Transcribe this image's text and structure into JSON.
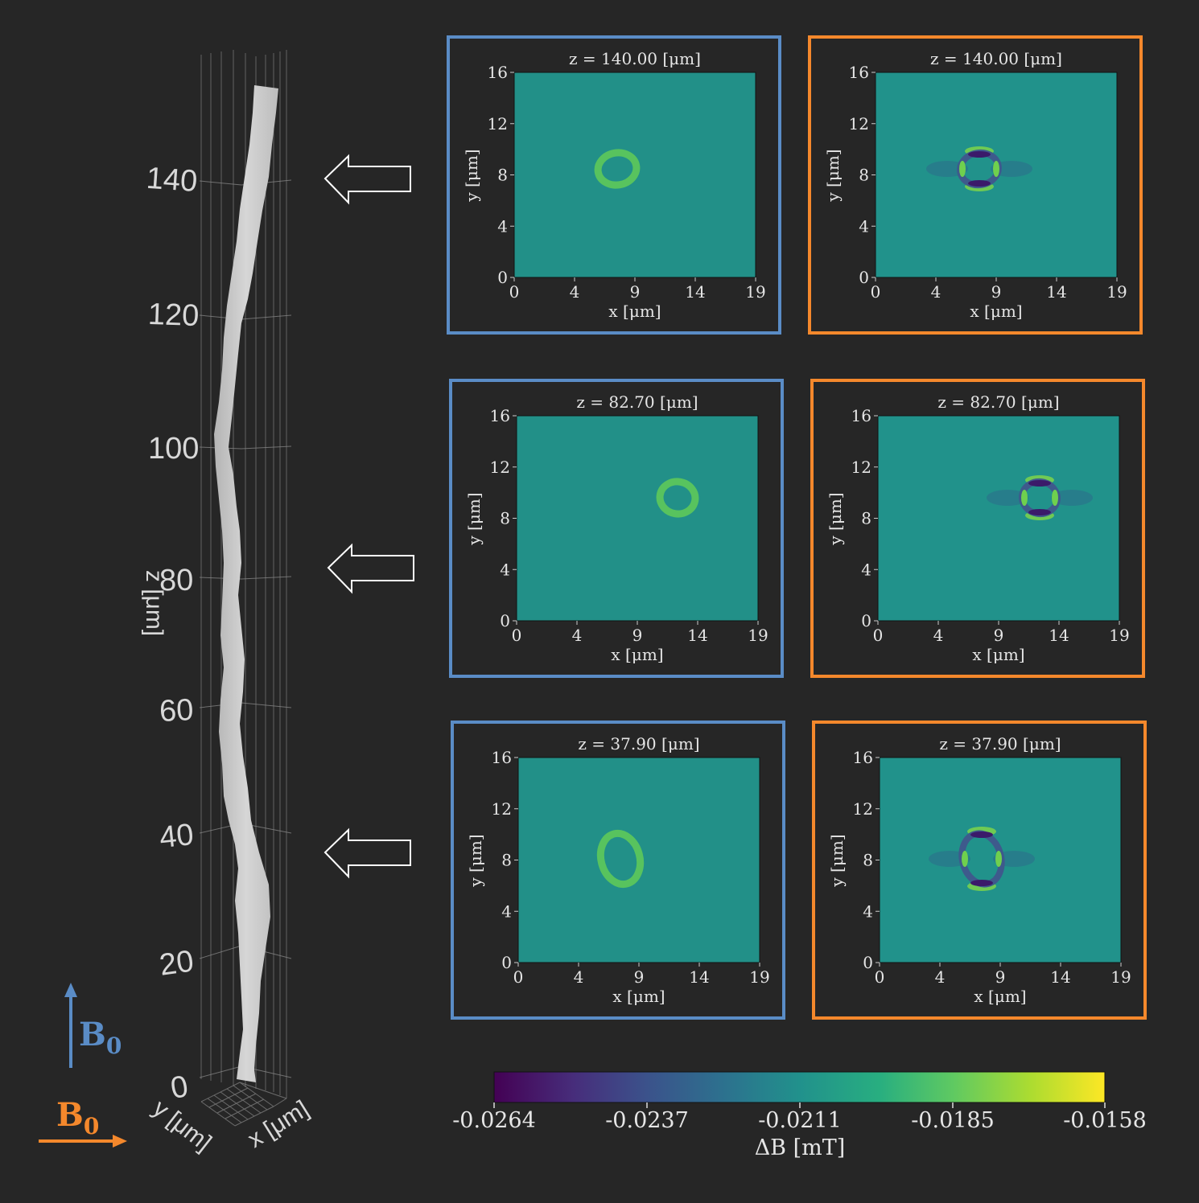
{
  "colors": {
    "background": "#262626",
    "blue_frame": "#5a8cc6",
    "orange_frame": "#f4882c",
    "vessel": "#c8c8c8"
  },
  "vessel_plot": {
    "z_axis_label": "z [μm]",
    "x_axis_label": "x [μm]",
    "y_axis_label": "y [μm]",
    "z_ticks": [
      "0",
      "20",
      "40",
      "60",
      "80",
      "100",
      "120",
      "140"
    ]
  },
  "field_labels": {
    "vertical": {
      "symbol": "B",
      "subscript": "0",
      "color": "#5a8cc6"
    },
    "horizontal": {
      "symbol": "B",
      "subscript": "0",
      "color": "#f4882c"
    }
  },
  "slices": [
    {
      "z_label": "z = 140.00 [μm]",
      "x_label": "x [μm]",
      "y_label": "y [μm]"
    },
    {
      "z_label": "z = 82.70 [μm]",
      "x_label": "x [μm]",
      "y_label": "y [μm]"
    },
    {
      "z_label": "z = 37.90 [μm]",
      "x_label": "x [μm]",
      "y_label": "y [μm]"
    }
  ],
  "map_axes": {
    "x_ticks": [
      "0",
      "4",
      "9",
      "14",
      "19"
    ],
    "y_ticks": [
      "0",
      "4",
      "8",
      "12",
      "16"
    ]
  },
  "colorbar": {
    "label": "ΔB [mT]",
    "ticks": [
      "-0.0264",
      "-0.0237",
      "-0.0211",
      "-0.0185",
      "-0.0158"
    ],
    "colormap": "viridis"
  }
}
